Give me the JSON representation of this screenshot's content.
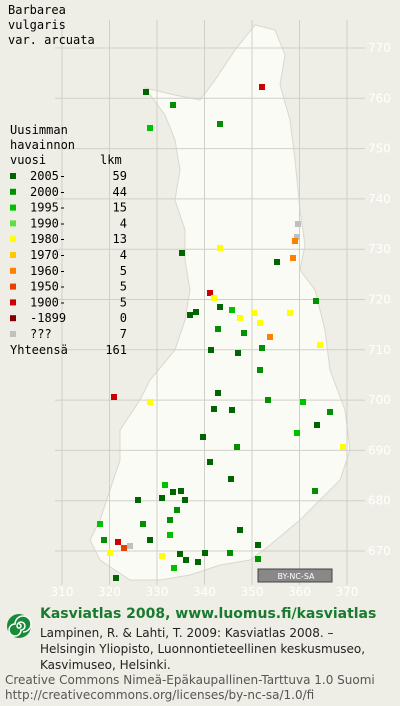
{
  "title": [
    "Barbarea",
    "vulgaris",
    "var. arcuata"
  ],
  "legend": {
    "heading": [
      "Uusimman",
      "havainnon",
      "vuosi"
    ],
    "count_heading": "lkm",
    "rows": [
      {
        "label": "2005-",
        "count": 59,
        "color": "#006400"
      },
      {
        "label": "2000-",
        "count": 44,
        "color": "#009000"
      },
      {
        "label": "1995-",
        "count": 15,
        "color": "#00c000"
      },
      {
        "label": "1990-",
        "count": 4,
        "color": "#60e040"
      },
      {
        "label": "1980-",
        "count": 13,
        "color": "#ffff00"
      },
      {
        "label": "1970-",
        "count": 4,
        "color": "#ffc800"
      },
      {
        "label": "1960-",
        "count": 5,
        "color": "#ff8000"
      },
      {
        "label": "1950-",
        "count": 5,
        "color": "#e84000"
      },
      {
        "label": "1900-",
        "count": 5,
        "color": "#cc0000"
      },
      {
        "label": "-1899",
        "count": 0,
        "color": "#800000"
      },
      {
        "label": "???",
        "count": 7,
        "color": "#c0c0c0"
      }
    ],
    "total_label": "Yhteensä",
    "total": 161
  },
  "grid_y_labels": [
    770,
    760,
    750,
    740,
    730,
    720,
    710,
    700,
    690,
    680,
    670
  ],
  "grid_x_labels": [
    310,
    320,
    330,
    340,
    350,
    360,
    370
  ],
  "cc_badge": "BY-NC-SA",
  "footer": {
    "heading": "Kasviatlas 2008, www.luomus.fi/kasviatlas",
    "citation": [
      "Lampinen, R. & Lahti, T. 2009: Kasviatlas 2008. –",
      "Helsingin Yliopisto, Luonnontieteellinen keskusmuseo,",
      "Kasvimuseo, Helsinki."
    ],
    "license": [
      "Creative Commons Nimeä-Epäkaupallinen-Tarttuva 1.0 Suomi",
      "http://creativecommons.org/licenses/by-nc-sa/1.0/fi"
    ]
  }
}
